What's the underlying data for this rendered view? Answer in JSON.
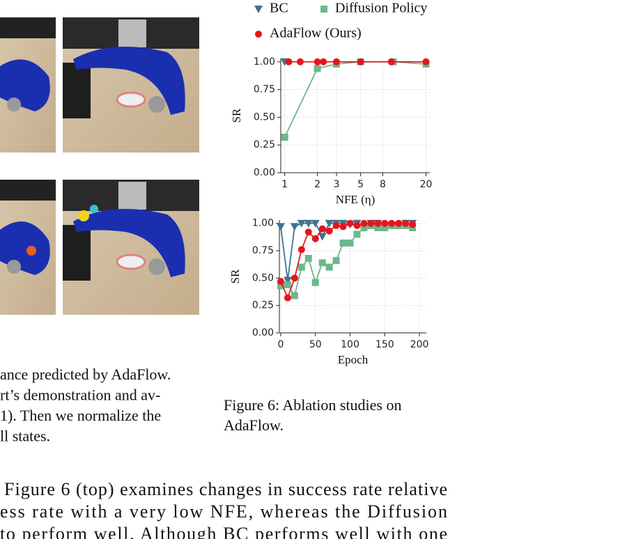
{
  "left_caption": [
    "ance predicted by AdaFlow.",
    "rt’s demonstration and av-",
    "1). Then we normalize the",
    "ll states."
  ],
  "figure_caption": [
    "Figure 6: Ablation studies on",
    "AdaFlow."
  ],
  "body": [
    "Figure 6 (top) examines changes in success rate relative",
    "ess rate with a very low NFE, whereas the Diffusion",
    "to perform well. Although BC performs well with one"
  ],
  "chart_data": [
    {
      "type": "line",
      "ylabel": "SR",
      "xlabel": "NFE (η)",
      "xscale": "log",
      "grid": true,
      "xlim": [
        0.92,
        21.7
      ],
      "ylim": [
        0,
        1.03
      ],
      "xticks": [
        1,
        2,
        3,
        5,
        8,
        20
      ],
      "yticks": [
        {
          "value": 0,
          "label": "0.00"
        },
        {
          "value": 0.25,
          "label": "0.25"
        },
        {
          "value": 0.5,
          "label": "0.50"
        },
        {
          "value": 0.75,
          "label": "0.75"
        },
        {
          "value": 1,
          "label": "1.00"
        }
      ],
      "series": [
        {
          "name": "BC",
          "color": "#41728f",
          "marker": "triangle",
          "x": [
            1
          ],
          "values": [
            1.0
          ]
        },
        {
          "name": "Diffusion Policy",
          "color": "#6db78b",
          "marker": "square",
          "x": [
            1,
            2,
            3,
            5,
            10,
            20
          ],
          "values": [
            0.32,
            0.94,
            0.98,
            1.0,
            1.0,
            0.98
          ]
        },
        {
          "name": "AdaFlow (Ours)",
          "color": "#e8141c",
          "marker": "circle",
          "x": [
            1.09,
            1.39,
            2,
            2.27,
            3,
            5,
            9.6,
            20
          ],
          "values": [
            1.0,
            1.0,
            1.0,
            1.0,
            1.0,
            1.0,
            1.0,
            1.0
          ]
        }
      ]
    },
    {
      "type": "line",
      "ylabel": "SR",
      "xlabel": "Epoch",
      "grid": true,
      "xlim": [
        -2,
        210
      ],
      "ylim": [
        0,
        1.03
      ],
      "xticks": [
        0,
        50,
        100,
        150,
        200
      ],
      "yticks": [
        {
          "value": 0,
          "label": "0.00"
        },
        {
          "value": 0.25,
          "label": "0.25"
        },
        {
          "value": 0.5,
          "label": "0.50"
        },
        {
          "value": 0.75,
          "label": "0.75"
        },
        {
          "value": 1,
          "label": "1.00"
        }
      ],
      "series": [
        {
          "name": "BC",
          "color": "#41728f",
          "marker": "triangle",
          "x": [
            0,
            10,
            20,
            30,
            40,
            50,
            60,
            70,
            80,
            90,
            100,
            110,
            120,
            130,
            140,
            150,
            160,
            170,
            180,
            190
          ],
          "values": [
            0.97,
            0.48,
            0.97,
            1.0,
            1.0,
            1.0,
            0.88,
            1.0,
            1.0,
            1.0,
            0.99,
            1.0,
            0.96,
            1.0,
            1.0,
            0.98,
            0.98,
            0.98,
            1.0,
            1.0
          ]
        },
        {
          "name": "Diffusion Policy",
          "color": "#6db78b",
          "marker": "square",
          "x": [
            0,
            10,
            20,
            30,
            40,
            50,
            60,
            70,
            80,
            90,
            100,
            110,
            120,
            130,
            140,
            150,
            160,
            170,
            180,
            190
          ],
          "values": [
            0.43,
            0.44,
            0.34,
            0.6,
            0.68,
            0.46,
            0.64,
            0.6,
            0.66,
            0.82,
            0.82,
            0.9,
            0.96,
            0.98,
            0.96,
            0.96,
            0.98,
            0.98,
            0.98,
            0.96
          ]
        },
        {
          "name": "AdaFlow (Ours)",
          "color": "#e8141c",
          "marker": "circle",
          "x": [
            0,
            10,
            20,
            30,
            40,
            50,
            60,
            70,
            80,
            90,
            100,
            110,
            120,
            130,
            140,
            150,
            160,
            170,
            180,
            190
          ],
          "values": [
            0.47,
            0.32,
            0.5,
            0.76,
            0.92,
            0.86,
            0.95,
            0.93,
            0.98,
            0.97,
            1.0,
            0.98,
            1.0,
            1.0,
            1.0,
            1.0,
            1.0,
            1.0,
            1.0,
            0.99
          ]
        }
      ]
    }
  ]
}
